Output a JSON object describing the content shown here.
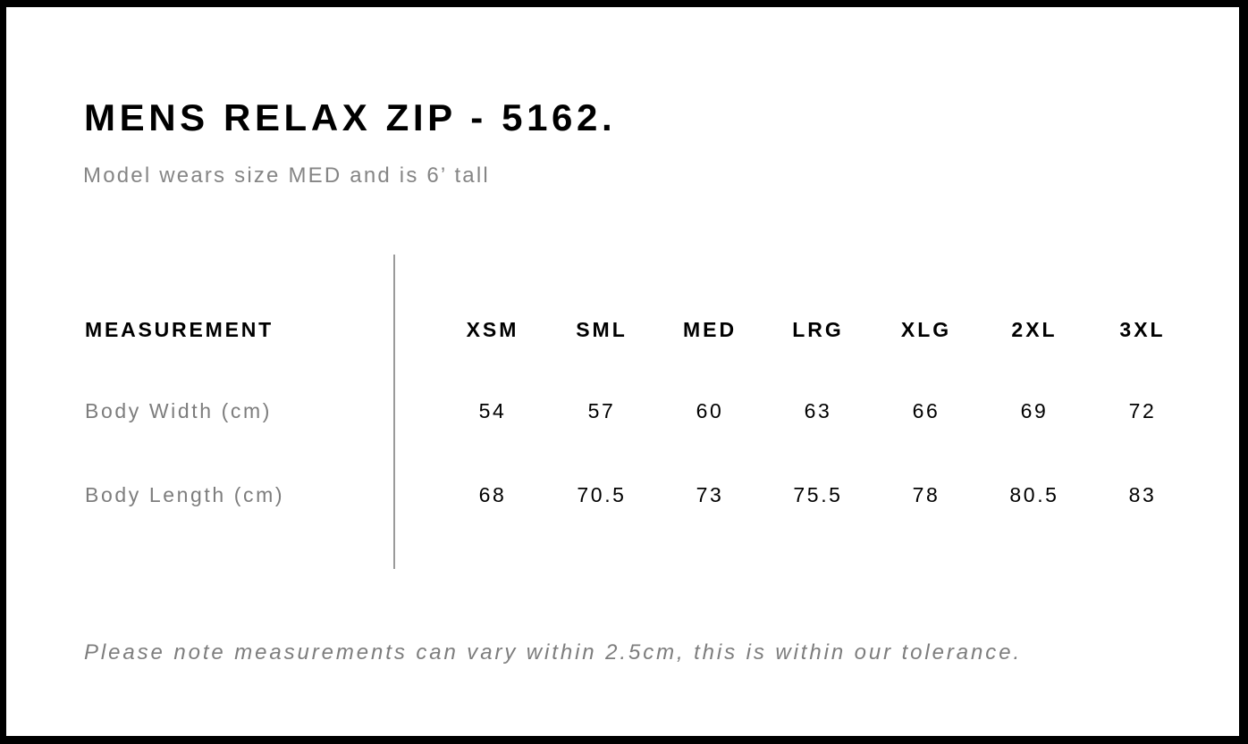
{
  "title": "MENS RELAX ZIP - 5162.",
  "subtitle": "Model wears size MED and is 6’ tall",
  "table": {
    "header_label": "MEASUREMENT",
    "sizes": [
      "XSM",
      "SML",
      "MED",
      "LRG",
      "XLG",
      "2XL",
      "3XL"
    ],
    "rows": [
      {
        "label": "Body Width (cm)",
        "values": [
          "54",
          "57",
          "60",
          "63",
          "66",
          "69",
          "72"
        ]
      },
      {
        "label": "Body Length (cm)",
        "values": [
          "68",
          "70.5",
          "73",
          "75.5",
          "78",
          "80.5",
          "83"
        ]
      }
    ]
  },
  "note": "Please note measurements can vary within 2.5cm, this is within our tolerance."
}
